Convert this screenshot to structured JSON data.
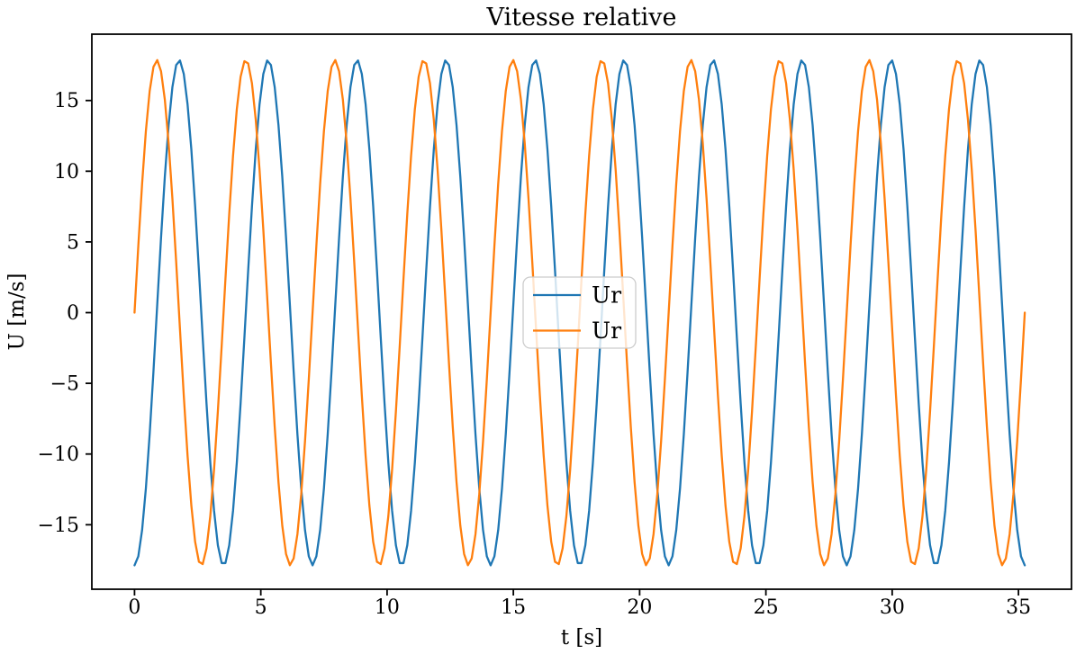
{
  "figure": {
    "background_color": "#ffffff",
    "text_color": "#000000",
    "axis_color": "#000000"
  },
  "chart_data": {
    "type": "line",
    "title": "Vitesse relative",
    "xlabel": "t [s]",
    "ylabel": "U [m/s]",
    "xlim": [
      -1.69,
      37.1
    ],
    "ylim": [
      -19.56,
      19.69
    ],
    "xticks": [
      0,
      5,
      10,
      15,
      20,
      25,
      30,
      35
    ],
    "yticks": [
      -15,
      -10,
      -5,
      0,
      5,
      10,
      15
    ],
    "grid": false,
    "legend": {
      "position": "center",
      "entries": [
        {
          "label": "Ur",
          "color": "#1f77b4"
        },
        {
          "label": "Ur",
          "color": "#ff7f0e"
        }
      ]
    },
    "series": [
      {
        "name": "Ur",
        "color": "#1f77b4",
        "waveform": "neg-cos",
        "amplitude": 17.87,
        "period_s": 3.525,
        "phase_note": "starts at minimum -17.87 at t=0, first peak at t=1.76",
        "t_start": 0,
        "t_end": 35.25,
        "n_points": 236
      },
      {
        "name": "Ur",
        "color": "#ff7f0e",
        "waveform": "sin",
        "amplitude": 17.87,
        "period_s": 3.525,
        "phase_note": "starts at 0 rising at t=0, first peak at t=0.88",
        "t_start": 0,
        "t_end": 35.25,
        "n_points": 236
      }
    ]
  }
}
